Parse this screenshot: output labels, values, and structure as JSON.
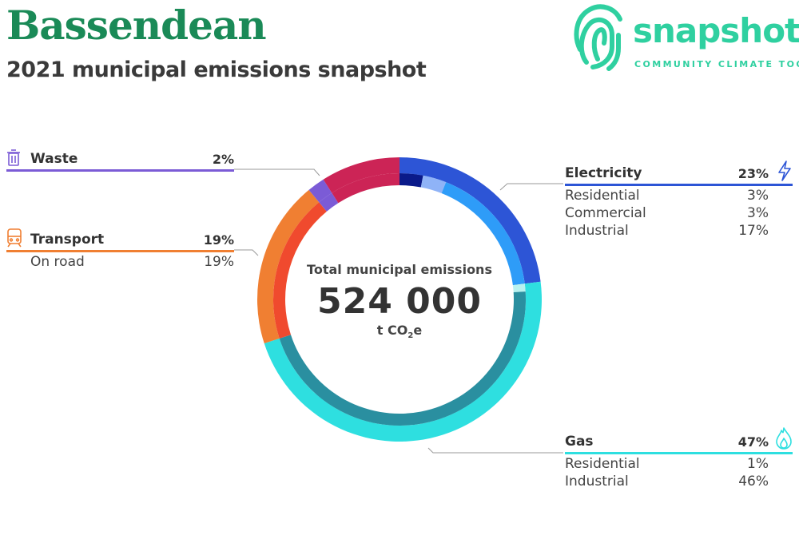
{
  "header": {
    "title": "Bassendean",
    "subtitle": "2021 municipal emissions snapshot"
  },
  "logo": {
    "word": "snapshot",
    "tagline": "COMMUNITY CLIMATE TOOL"
  },
  "center": {
    "label": "Total municipal emissions",
    "value": "524 000",
    "unit_prefix": "t CO",
    "unit_sub": "2",
    "unit_suffix": "e"
  },
  "icons": {
    "waste": "trash-icon",
    "transport": "train-icon",
    "electricity": "lightning-icon",
    "gas": "flame-icon"
  },
  "chart_data": {
    "type": "pie",
    "title": "Total municipal emissions",
    "total": 524000,
    "unit": "t CO2e",
    "sectors": [
      {
        "name": "Electricity",
        "pct_label": "23%",
        "value": 23,
        "color": "#2d55d6",
        "subs": [
          {
            "name": "Residential",
            "pct_label": "3%",
            "value": 3,
            "color": "#0a1a8a"
          },
          {
            "name": "Commercial",
            "pct_label": "3%",
            "value": 3,
            "color": "#8fb3f7"
          },
          {
            "name": "Industrial",
            "pct_label": "17%",
            "value": 17,
            "color": "#2e9cf8"
          }
        ]
      },
      {
        "name": "Gas",
        "pct_label": "47%",
        "value": 47,
        "color": "#2edfe0",
        "subs": [
          {
            "name": "Residential",
            "pct_label": "1%",
            "value": 1,
            "color": "#b8f2f0"
          },
          {
            "name": "Industrial",
            "pct_label": "46%",
            "value": 46,
            "color": "#2a8fa0"
          }
        ]
      },
      {
        "name": "Transport",
        "pct_label": "19%",
        "value": 19,
        "color": "#f07f32",
        "subs": [
          {
            "name": "On road",
            "pct_label": "19%",
            "value": 19,
            "color": "#f04a2e"
          }
        ]
      },
      {
        "name": "Waste",
        "pct_label": "2%",
        "value": 2,
        "color": "#7b5bd6",
        "subs": []
      },
      {
        "name": "",
        "pct_label": "",
        "value": 9,
        "color": "#cc2456",
        "subs": [
          {
            "name": "",
            "pct_label": "",
            "value": 9,
            "color": "#cc2456"
          }
        ]
      }
    ]
  }
}
